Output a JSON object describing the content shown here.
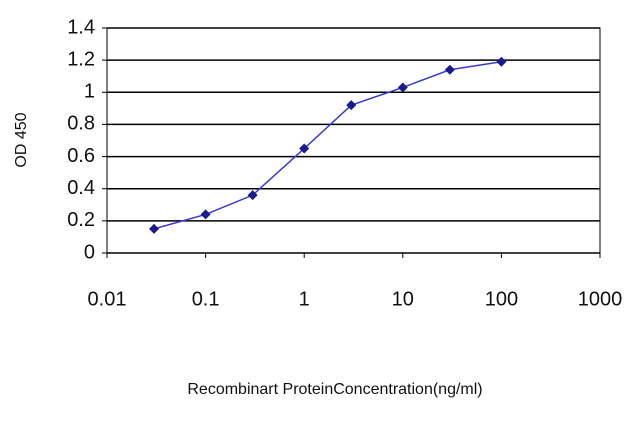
{
  "chart_data": {
    "type": "line",
    "x_label": "Recombinart ProteinConcentration(ng/ml)",
    "y_label": "OD 450",
    "x": [
      0.03,
      0.1,
      0.3,
      1,
      3,
      10,
      30,
      100
    ],
    "series": [
      {
        "color": "#3a3ad0",
        "marker_color": "#1a1a8c",
        "values": [
          0.15,
          0.24,
          0.36,
          0.65,
          0.92,
          1.03,
          1.14,
          1.19
        ]
      }
    ],
    "x_log": true,
    "xlim": [
      0.01,
      1000
    ],
    "xticks": [
      0.01,
      0.1,
      1,
      10,
      100,
      1000
    ],
    "ylim": [
      0,
      1.4
    ],
    "yticks": [
      0,
      0.2,
      0.4,
      0.6,
      0.8,
      1,
      1.2,
      1.4
    ],
    "grid": true
  }
}
